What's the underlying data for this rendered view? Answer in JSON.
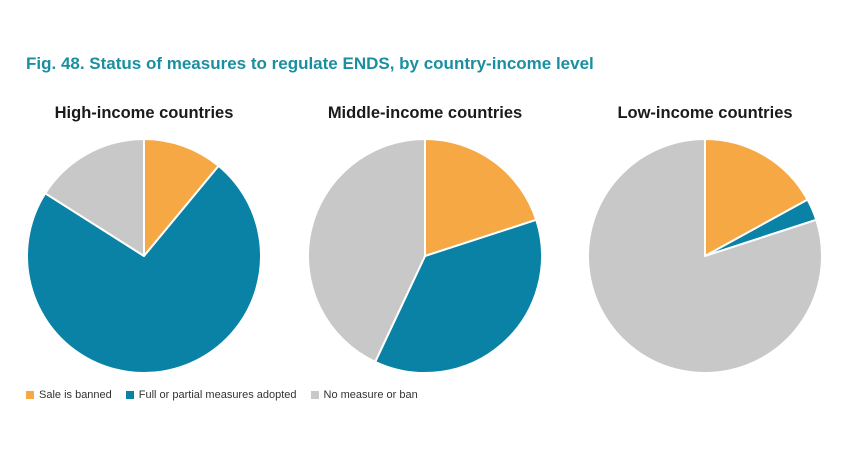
{
  "figure_title": "Fig. 48. Status of measures to regulate ENDS, by country-income level",
  "colors": {
    "banned": "#f5a843",
    "measures": "#0a82a6",
    "none": "#c8c8c8"
  },
  "chart_data": [
    {
      "type": "pie",
      "title": "High-income countries",
      "categories": [
        "Sale is banned",
        "Full or partial measures adopted",
        "No measure or ban"
      ],
      "values": [
        11,
        73,
        16
      ]
    },
    {
      "type": "pie",
      "title": "Middle-income countries",
      "categories": [
        "Sale is banned",
        "Full or partial measures adopted",
        "No measure or ban"
      ],
      "values": [
        20,
        37,
        43
      ]
    },
    {
      "type": "pie",
      "title": "Low-income countries",
      "categories": [
        "Sale is banned",
        "Full or partial measures adopted",
        "No measure or ban"
      ],
      "values": [
        17,
        3,
        80
      ]
    }
  ],
  "legend": [
    {
      "label": "Sale is banned",
      "color": "#f5a843"
    },
    {
      "label": "Full or partial measures adopted",
      "color": "#0a82a6"
    },
    {
      "label": "No measure or ban",
      "color": "#c8c8c8"
    }
  ]
}
